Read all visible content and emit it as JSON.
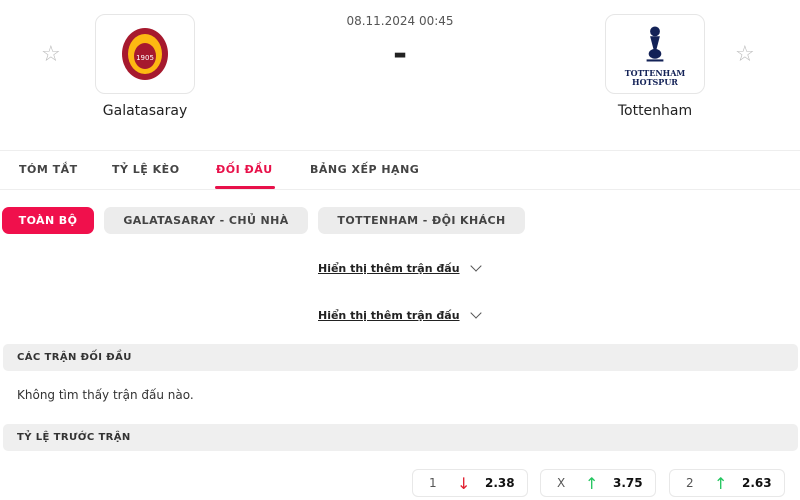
{
  "match": {
    "datetime": "08.11.2024 00:45",
    "score": "-",
    "home": {
      "name": "Galatasaray",
      "logo_text": "1905"
    },
    "away": {
      "name": "Tottenham",
      "logo_text": "TOTTENHAM HOTSPUR"
    }
  },
  "tabs": [
    "TÓM TẮT",
    "TỶ LỆ KÈO",
    "ĐỐI ĐẦU",
    "BẢNG XẾP HẠNG"
  ],
  "active_tab": "ĐỐI ĐẦU",
  "filters": [
    "TOÀN BỘ",
    "GALATASARAY - CHỦ NHÀ",
    "TOTTENHAM - ĐỘI KHÁCH"
  ],
  "show_more": [
    "Hiển thị thêm trận đấu",
    "Hiển thị thêm trận đấu"
  ],
  "h2h": {
    "title": "CÁC TRẬN ĐỐI ĐẦU",
    "empty": "Không tìm thấy trận đấu nào."
  },
  "odds": {
    "title": "TỶ LỆ TRƯỚC TRẬN",
    "items": [
      {
        "label": "1",
        "trend": "down",
        "value": "2.38"
      },
      {
        "label": "X",
        "trend": "up",
        "value": "3.75"
      },
      {
        "label": "2",
        "trend": "up",
        "value": "2.63"
      }
    ]
  },
  "colors": {
    "accent": "#e8114a",
    "up": "#22c55e",
    "down": "#e11d2e"
  }
}
